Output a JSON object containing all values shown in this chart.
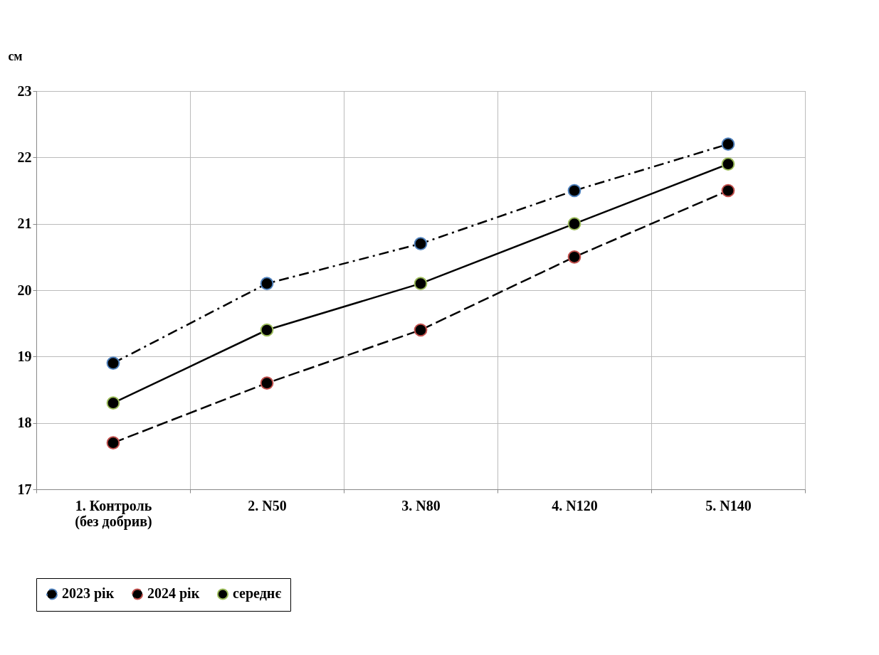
{
  "chart_data": {
    "type": "line",
    "ylabel": "см",
    "categories": [
      "1. Контроль\n(без добрив)",
      "2. N50",
      "3. N80",
      "4. N120",
      "5. N140"
    ],
    "series": [
      {
        "name": "2023 рік",
        "color": "#4f81bd",
        "line_style": "dotted",
        "values": [
          18.9,
          20.1,
          20.7,
          21.5,
          22.2
        ]
      },
      {
        "name": "2024 рік",
        "color": "#c0504d",
        "line_style": "dashed",
        "values": [
          17.7,
          18.6,
          19.4,
          20.5,
          21.5
        ]
      },
      {
        "name": "середнє",
        "color": "#9bbb59",
        "line_style": "solid",
        "values": [
          18.3,
          19.4,
          20.1,
          21.0,
          21.9
        ]
      }
    ],
    "ylim": [
      17,
      23
    ],
    "yticks": [
      17,
      18,
      19,
      20,
      21,
      22,
      23
    ],
    "grid": true,
    "legend": "bottom",
    "marker": "circle"
  }
}
